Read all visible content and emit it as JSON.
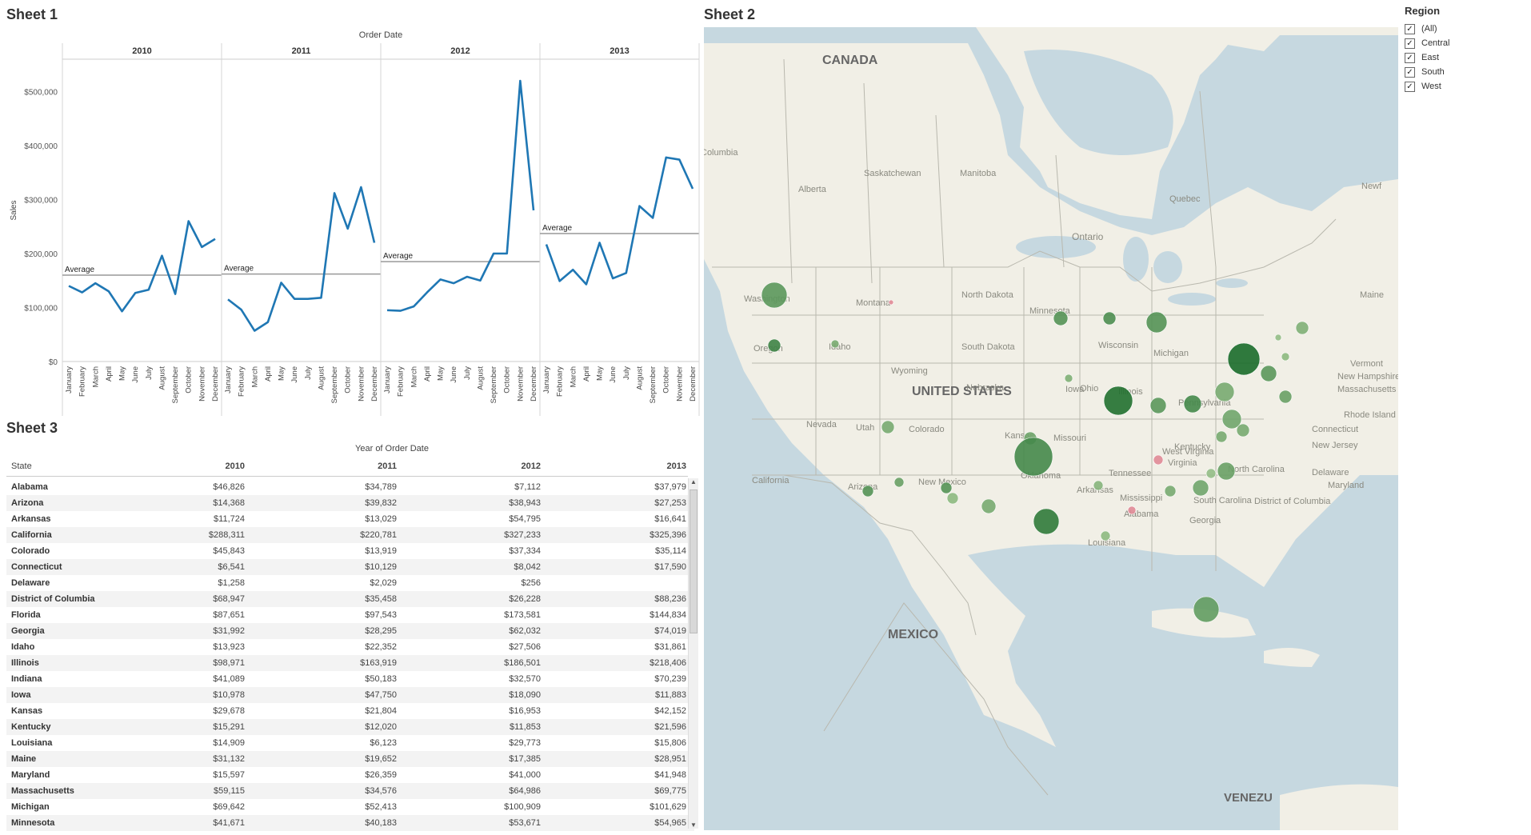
{
  "sheet1": {
    "title": "Sheet 1",
    "column_header": "Order Date",
    "y_axis_label": "Sales",
    "avg_label": "Average"
  },
  "chart_data": {
    "type": "line",
    "years": [
      "2010",
      "2011",
      "2012",
      "2013"
    ],
    "months": [
      "January",
      "February",
      "March",
      "April",
      "May",
      "June",
      "July",
      "August",
      "September",
      "October",
      "November",
      "December"
    ],
    "ylabel": "Sales",
    "xlabel": "",
    "ylim": [
      0,
      560000
    ],
    "y_ticks": [
      0,
      100000,
      200000,
      300000,
      400000,
      500000
    ],
    "y_tick_labels": [
      "$0",
      "$100,000",
      "$200,000",
      "$300,000",
      "$400,000",
      "$500,000"
    ],
    "series": [
      {
        "year": "2010",
        "values": [
          140000,
          128000,
          145000,
          130000,
          93000,
          127000,
          133000,
          196000,
          125000,
          260000,
          212000,
          227000
        ]
      },
      {
        "year": "2011",
        "values": [
          115000,
          96000,
          57000,
          73000,
          146000,
          116000,
          116000,
          118000,
          312000,
          246000,
          323000,
          220000
        ]
      },
      {
        "year": "2012",
        "values": [
          95000,
          94000,
          102000,
          128000,
          152000,
          145000,
          157000,
          150000,
          200000,
          200000,
          520000,
          280000
        ]
      },
      {
        "year": "2013",
        "values": [
          217000,
          149000,
          170000,
          143000,
          220000,
          154000,
          164000,
          288000,
          266000,
          378000,
          374000,
          320000
        ]
      }
    ],
    "averages": [
      160000,
      162000,
      185000,
      237000
    ],
    "line_color": "#1f77b4"
  },
  "sheet3": {
    "title": "Sheet 3",
    "column_header": "Year of Order Date",
    "headers": [
      "State",
      "2010",
      "2011",
      "2012",
      "2013"
    ],
    "rows": [
      [
        "Alabama",
        "$46,826",
        "$34,789",
        "$7,112",
        "$37,979"
      ],
      [
        "Arizona",
        "$14,368",
        "$39,832",
        "$38,943",
        "$27,253"
      ],
      [
        "Arkansas",
        "$11,724",
        "$13,029",
        "$54,795",
        "$16,641"
      ],
      [
        "California",
        "$288,311",
        "$220,781",
        "$327,233",
        "$325,396"
      ],
      [
        "Colorado",
        "$45,843",
        "$13,919",
        "$37,334",
        "$35,114"
      ],
      [
        "Connecticut",
        "$6,541",
        "$10,129",
        "$8,042",
        "$17,590"
      ],
      [
        "Delaware",
        "$1,258",
        "$2,029",
        "$256",
        ""
      ],
      [
        "District of Columbia",
        "$68,947",
        "$35,458",
        "$26,228",
        "$88,236"
      ],
      [
        "Florida",
        "$87,651",
        "$97,543",
        "$173,581",
        "$144,834"
      ],
      [
        "Georgia",
        "$31,992",
        "$28,295",
        "$62,032",
        "$74,019"
      ],
      [
        "Idaho",
        "$13,923",
        "$22,352",
        "$27,506",
        "$31,861"
      ],
      [
        "Illinois",
        "$98,971",
        "$163,919",
        "$186,501",
        "$218,406"
      ],
      [
        "Indiana",
        "$41,089",
        "$50,183",
        "$32,570",
        "$70,239"
      ],
      [
        "Iowa",
        "$10,978",
        "$47,750",
        "$18,090",
        "$11,883"
      ],
      [
        "Kansas",
        "$29,678",
        "$21,804",
        "$16,953",
        "$42,152"
      ],
      [
        "Kentucky",
        "$15,291",
        "$12,020",
        "$11,853",
        "$21,596"
      ],
      [
        "Louisiana",
        "$14,909",
        "$6,123",
        "$29,773",
        "$15,806"
      ],
      [
        "Maine",
        "$31,132",
        "$19,652",
        "$17,385",
        "$28,951"
      ],
      [
        "Maryland",
        "$15,597",
        "$26,359",
        "$41,000",
        "$41,948"
      ],
      [
        "Massachusetts",
        "$59,115",
        "$34,576",
        "$64,986",
        "$69,775"
      ],
      [
        "Michigan",
        "$69,642",
        "$52,413",
        "$100,909",
        "$101,629"
      ],
      [
        "Minnesota",
        "$41,671",
        "$40,183",
        "$53,671",
        "$54,965"
      ]
    ]
  },
  "sheet2": {
    "title": "Sheet 2",
    "map_labels": [
      {
        "text": "CANADA",
        "kind": "country"
      },
      {
        "text": "UNITED STATES",
        "kind": "country"
      },
      {
        "text": "MEXICO",
        "kind": "country"
      },
      {
        "text": "VENEZU",
        "kind": "country"
      },
      {
        "text": "Columbia",
        "kind": "region"
      },
      {
        "text": "Alberta",
        "kind": "region"
      },
      {
        "text": "Saskatchewan",
        "kind": "region"
      },
      {
        "text": "Manitoba",
        "kind": "region"
      },
      {
        "text": "Ontario",
        "kind": "region"
      },
      {
        "text": "Quebec",
        "kind": "region"
      },
      {
        "text": "Newf",
        "kind": "region"
      },
      {
        "text": "Washington",
        "kind": "state"
      },
      {
        "text": "Oregon",
        "kind": "state"
      },
      {
        "text": "Idaho",
        "kind": "state"
      },
      {
        "text": "Montana",
        "kind": "state"
      },
      {
        "text": "North Dakota",
        "kind": "state"
      },
      {
        "text": "South Dakota",
        "kind": "state"
      },
      {
        "text": "Wyoming",
        "kind": "state"
      },
      {
        "text": "Minnesota",
        "kind": "state"
      },
      {
        "text": "Wisconsin",
        "kind": "state"
      },
      {
        "text": "Michigan",
        "kind": "state"
      },
      {
        "text": "Iowa",
        "kind": "state"
      },
      {
        "text": "Nebraska",
        "kind": "state"
      },
      {
        "text": "Nevada",
        "kind": "state"
      },
      {
        "text": "Utah",
        "kind": "state"
      },
      {
        "text": "Colorado",
        "kind": "state"
      },
      {
        "text": "Kansas",
        "kind": "state"
      },
      {
        "text": "Missouri",
        "kind": "state"
      },
      {
        "text": "Illinois",
        "kind": "state"
      },
      {
        "text": "Ohio",
        "kind": "state"
      },
      {
        "text": "Pennsylvania",
        "kind": "state"
      },
      {
        "text": "California",
        "kind": "state"
      },
      {
        "text": "Arizona",
        "kind": "state"
      },
      {
        "text": "New Mexico",
        "kind": "state"
      },
      {
        "text": "Oklahoma",
        "kind": "state"
      },
      {
        "text": "Arkansas",
        "kind": "state"
      },
      {
        "text": "Tennessee",
        "kind": "state"
      },
      {
        "text": "Kentucky",
        "kind": "state"
      },
      {
        "text": "West Virginia",
        "kind": "state"
      },
      {
        "text": "Virginia",
        "kind": "state"
      },
      {
        "text": "North Carolina",
        "kind": "state"
      },
      {
        "text": "South Carolina",
        "kind": "state"
      },
      {
        "text": "Georgia",
        "kind": "state"
      },
      {
        "text": "Alabama",
        "kind": "state"
      },
      {
        "text": "Mississippi",
        "kind": "state"
      },
      {
        "text": "Louisiana",
        "kind": "state"
      },
      {
        "text": "Maine",
        "kind": "state"
      },
      {
        "text": "Vermont",
        "kind": "state"
      },
      {
        "text": "New Hampshire",
        "kind": "state"
      },
      {
        "text": "Massachusetts",
        "kind": "state"
      },
      {
        "text": "Rhode Island",
        "kind": "state"
      },
      {
        "text": "Connecticut",
        "kind": "state"
      },
      {
        "text": "New Jersey",
        "kind": "state"
      },
      {
        "text": "Delaware",
        "kind": "state"
      },
      {
        "text": "Maryland",
        "kind": "state"
      },
      {
        "text": "District of Columbia",
        "kind": "state"
      }
    ],
    "colors": {
      "water": "#c6d8e0",
      "land": "#f1efe6",
      "border": "#b9b8ae",
      "mark_light": "#8fc08a",
      "mark_dark": "#1a6b2a",
      "mark_negative": "#e08a96"
    }
  },
  "legend": {
    "title": "Region",
    "items": [
      {
        "label": "(All)",
        "checked": true
      },
      {
        "label": "Central",
        "checked": true
      },
      {
        "label": "East",
        "checked": true
      },
      {
        "label": "South",
        "checked": true
      },
      {
        "label": "West",
        "checked": true
      }
    ]
  }
}
